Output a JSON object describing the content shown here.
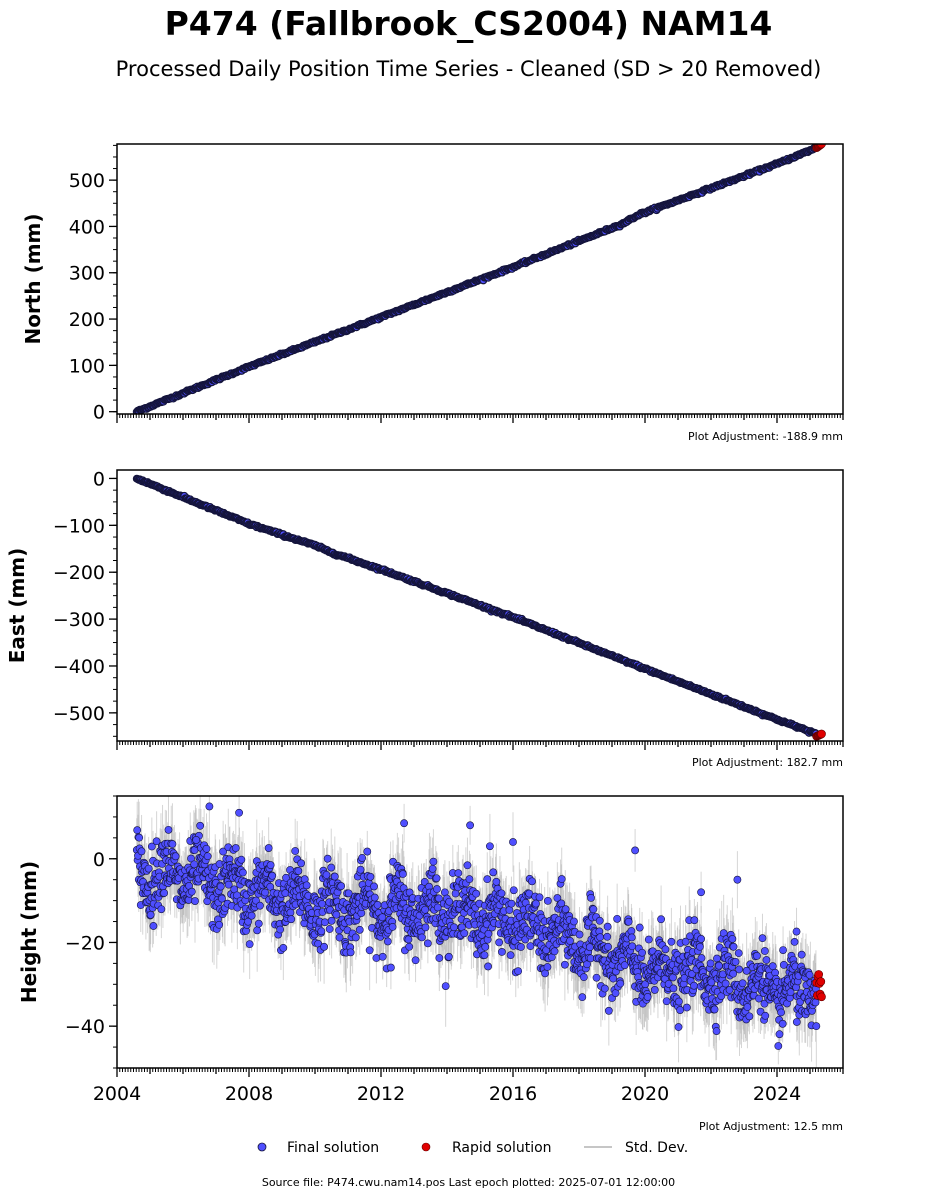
{
  "title": "P474 (Fallbrook_CS2004) NAM14",
  "subtitle": "Processed Daily Position Time Series - Cleaned (SD > 20 Removed)",
  "footer": "Source file: P474.cwu.nam14.pos  Last epoch plotted: 2025-07-01 12:00:00",
  "legend": {
    "final": "Final solution",
    "rapid": "Rapid solution",
    "stddev": "Std. Dev."
  },
  "colors": {
    "final_fill": "#4f4fff",
    "final_edge": "#14143c",
    "rapid_fill": "#e00000",
    "stddev": "#b4b4b4",
    "axis": "#000000"
  },
  "chart_data": [
    {
      "type": "scatter",
      "panel": "north",
      "xlabel": "",
      "ylabel": "North (mm)",
      "xlim": [
        2004.0,
        2026.0
      ],
      "ylim": [
        -5,
        578
      ],
      "yticks": [
        0,
        100,
        200,
        300,
        400,
        500
      ],
      "annotation": "Plot Adjustment: -188.9 mm",
      "data_span": [
        2004.6,
        2025.35
      ],
      "series": [
        {
          "name": "Final solution",
          "trend": [
            [
              2004.6,
              0
            ],
            [
              2008.0,
              97
            ],
            [
              2012.0,
              204
            ],
            [
              2016.0,
              312
            ],
            [
              2019.3,
              405
            ],
            [
              2019.8,
              425
            ],
            [
              2020.3,
              438
            ],
            [
              2024.0,
              535
            ],
            [
              2025.2,
              570
            ]
          ]
        },
        {
          "name": "Rapid solution",
          "x_range": [
            2025.2,
            2025.35
          ],
          "y_range": [
            570,
            578
          ]
        }
      ]
    },
    {
      "type": "scatter",
      "panel": "east",
      "xlabel": "",
      "ylabel": "East (mm)",
      "xlim": [
        2004.0,
        2026.0
      ],
      "ylim": [
        -560,
        18
      ],
      "yticks": [
        0,
        -100,
        -200,
        -300,
        -400,
        -500
      ],
      "annotation": "Plot Adjustment: 182.7 mm",
      "data_span": [
        2004.6,
        2025.35
      ],
      "series": [
        {
          "name": "Final solution",
          "trend": [
            [
              2004.6,
              0
            ],
            [
              2008.0,
              -97
            ],
            [
              2010.0,
              -143
            ],
            [
              2010.5,
              -158
            ],
            [
              2012.0,
              -194
            ],
            [
              2016.0,
              -296
            ],
            [
              2020.0,
              -406
            ],
            [
              2024.0,
              -514
            ],
            [
              2025.2,
              -545
            ]
          ]
        },
        {
          "name": "Rapid solution",
          "x_range": [
            2025.2,
            2025.35
          ],
          "y_range": [
            -550,
            -545
          ]
        }
      ]
    },
    {
      "type": "scatter",
      "panel": "height",
      "xlabel": "",
      "ylabel": "Height (mm)",
      "xlim": [
        2004.0,
        2026.0
      ],
      "ylim": [
        -50,
        15
      ],
      "yticks": [
        0,
        -20,
        -40
      ],
      "xticks": [
        2004,
        2008,
        2012,
        2016,
        2020,
        2024
      ],
      "annotation": "Plot Adjustment: 12.5 mm",
      "data_span": [
        2004.6,
        2025.35
      ],
      "series": [
        {
          "name": "Final solution",
          "trend": [
            [
              2004.6,
              -3
            ],
            [
              2006.0,
              -4
            ],
            [
              2008.0,
              -8
            ],
            [
              2010.0,
              -11
            ],
            [
              2012.0,
              -12
            ],
            [
              2014.0,
              -12
            ],
            [
              2016.0,
              -15
            ],
            [
              2018.0,
              -20
            ],
            [
              2020.0,
              -27
            ],
            [
              2022.0,
              -27
            ],
            [
              2024.0,
              -32
            ],
            [
              2025.2,
              -31
            ]
          ],
          "scatter_sd_mm": 4,
          "seasonal_amplitude_mm": 3.5,
          "outliers": [
            [
              2006.8,
              12.5
            ],
            [
              2007.7,
              11
            ],
            [
              2006.4,
              4.5
            ],
            [
              2012.7,
              8.5
            ],
            [
              2014.7,
              8
            ],
            [
              2015.3,
              3
            ],
            [
              2016.0,
              4
            ],
            [
              2019.7,
              2
            ],
            [
              2022.8,
              -5
            ],
            [
              2021.7,
              -8
            ],
            [
              2012.3,
              -26
            ],
            [
              2024.6,
              -39
            ]
          ]
        },
        {
          "name": "Rapid solution",
          "x_range": [
            2025.2,
            2025.35
          ],
          "y_range": [
            -33,
            -27.5
          ]
        }
      ]
    }
  ]
}
